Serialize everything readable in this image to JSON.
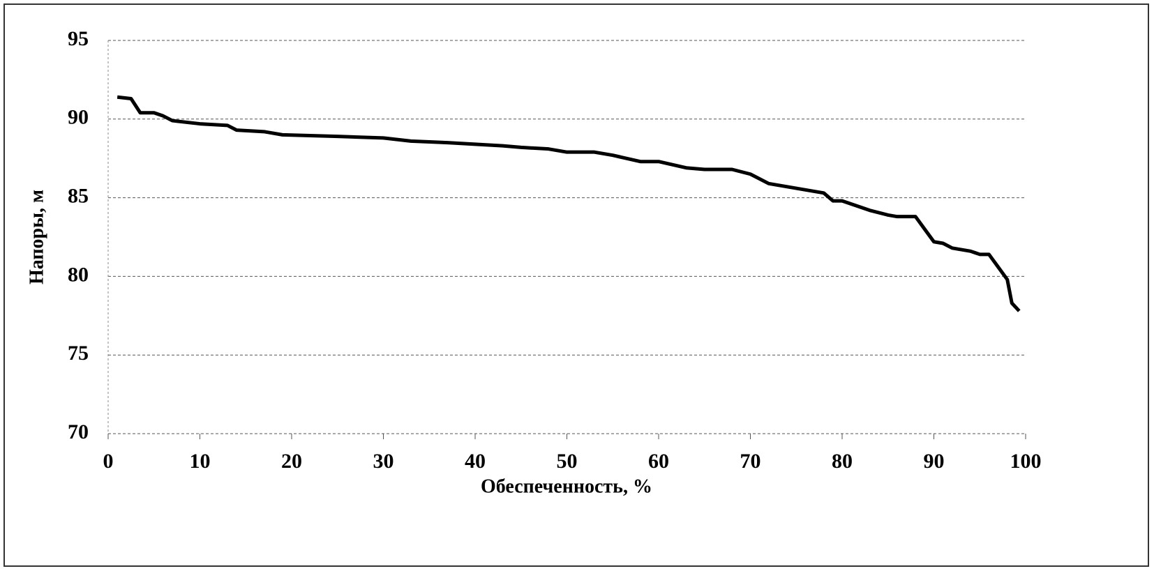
{
  "chart_data": {
    "type": "line",
    "x_label": "Обеспеченность, %",
    "y_label": "Напоры, м",
    "xlim": [
      0,
      100
    ],
    "xticks": [
      0,
      10,
      20,
      30,
      40,
      50,
      60,
      70,
      80,
      90,
      100
    ],
    "ylim": [
      70,
      95
    ],
    "yticks": [
      70,
      75,
      80,
      85,
      90,
      95
    ],
    "grid": true,
    "series": [
      {
        "color": "#000000",
        "x": [
          1,
          2.5,
          3.5,
          5,
          6,
          7,
          10,
          13,
          14,
          17,
          19,
          25,
          30,
          33,
          37,
          40,
          43,
          45,
          48,
          50,
          53,
          55,
          58,
          60,
          63,
          65,
          68,
          70,
          72,
          75,
          78,
          79,
          80,
          82,
          83,
          85,
          86,
          88,
          89,
          90,
          91,
          92,
          94,
          95,
          96,
          97,
          98,
          98.5,
          99.3
        ],
        "values": [
          91.4,
          91.3,
          90.4,
          90.4,
          90.2,
          89.9,
          89.7,
          89.6,
          89.3,
          89.2,
          89.0,
          88.9,
          88.8,
          88.6,
          88.5,
          88.4,
          88.3,
          88.2,
          88.1,
          87.9,
          87.9,
          87.7,
          87.3,
          87.3,
          86.9,
          86.8,
          86.8,
          86.5,
          85.9,
          85.6,
          85.3,
          84.8,
          84.8,
          84.4,
          84.2,
          83.9,
          83.8,
          83.8,
          83.0,
          82.2,
          82.1,
          81.8,
          81.6,
          81.4,
          81.4,
          80.6,
          79.8,
          78.3,
          77.8
        ]
      }
    ]
  }
}
